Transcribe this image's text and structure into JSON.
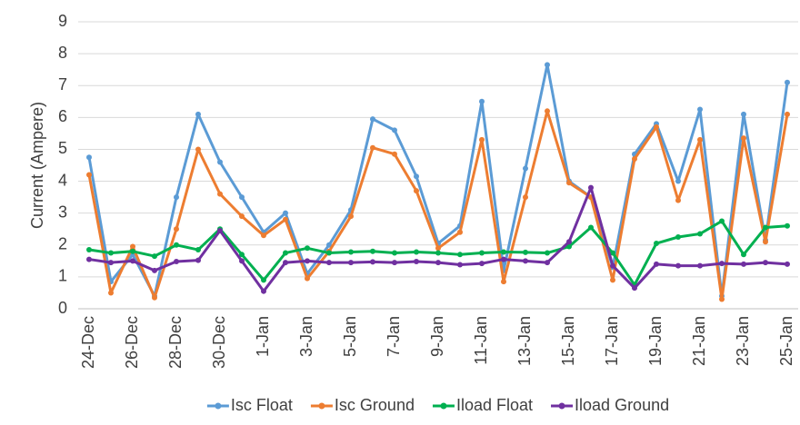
{
  "chart_data": {
    "type": "line",
    "y_label": "Current (Ampere)",
    "categories": [
      "24-Dec",
      null,
      "26-Dec",
      null,
      "28-Dec",
      null,
      "30-Dec",
      null,
      "1-Jan",
      null,
      "3-Jan",
      null,
      "5-Jan",
      null,
      "7-Jan",
      null,
      "9-Jan",
      null,
      "11-Jan",
      null,
      "13-Jan",
      null,
      "15-Jan",
      null,
      "17-Jan",
      null,
      "19-Jan",
      null,
      "21-Jan",
      null,
      "23-Jan",
      null,
      "25-Jan"
    ],
    "series": [
      {
        "name": "Isc Float",
        "color": "#5b9bd5",
        "values": [
          4.75,
          0.85,
          1.7,
          0.4,
          3.5,
          6.1,
          4.6,
          3.5,
          2.4,
          3.0,
          1.1,
          2.0,
          3.1,
          5.95,
          5.6,
          4.15,
          2.05,
          2.6,
          6.5,
          1.2,
          4.4,
          7.65,
          4.0,
          3.5,
          1.3,
          4.85,
          5.8,
          4.0,
          6.25,
          0.4,
          6.1,
          2.15,
          7.1
        ]
      },
      {
        "name": "Isc Ground",
        "color": "#ed7d31",
        "values": [
          4.2,
          0.5,
          1.95,
          0.35,
          2.5,
          5.0,
          3.6,
          2.9,
          2.3,
          2.8,
          0.95,
          1.8,
          2.9,
          5.05,
          4.85,
          3.7,
          1.9,
          2.4,
          5.3,
          0.85,
          3.5,
          6.2,
          3.95,
          3.5,
          0.9,
          4.7,
          5.7,
          3.4,
          5.3,
          0.3,
          5.35,
          2.1,
          6.1
        ]
      },
      {
        "name": "Iload Float",
        "color": "#00b050",
        "values": [
          1.85,
          1.75,
          1.8,
          1.65,
          2.0,
          1.85,
          2.5,
          1.7,
          0.9,
          1.75,
          1.9,
          1.75,
          1.78,
          1.8,
          1.75,
          1.78,
          1.75,
          1.7,
          1.75,
          1.78,
          1.77,
          1.75,
          1.95,
          2.55,
          1.75,
          0.75,
          2.05,
          2.25,
          2.35,
          2.75,
          1.7,
          2.55,
          2.6
        ]
      },
      {
        "name": "Iload Ground",
        "color": "#7030a0",
        "values": [
          1.55,
          1.45,
          1.5,
          1.2,
          1.48,
          1.52,
          2.45,
          1.5,
          0.55,
          1.45,
          1.5,
          1.45,
          1.45,
          1.47,
          1.45,
          1.48,
          1.45,
          1.38,
          1.42,
          1.55,
          1.5,
          1.45,
          2.1,
          3.8,
          1.35,
          0.65,
          1.4,
          1.35,
          1.35,
          1.42,
          1.4,
          1.45,
          1.4
        ]
      }
    ],
    "ylim": [
      0,
      9
    ],
    "yticks": [
      0,
      1,
      2,
      3,
      4,
      5,
      6,
      7,
      8,
      9
    ],
    "grid": true,
    "legend": "bottom"
  }
}
